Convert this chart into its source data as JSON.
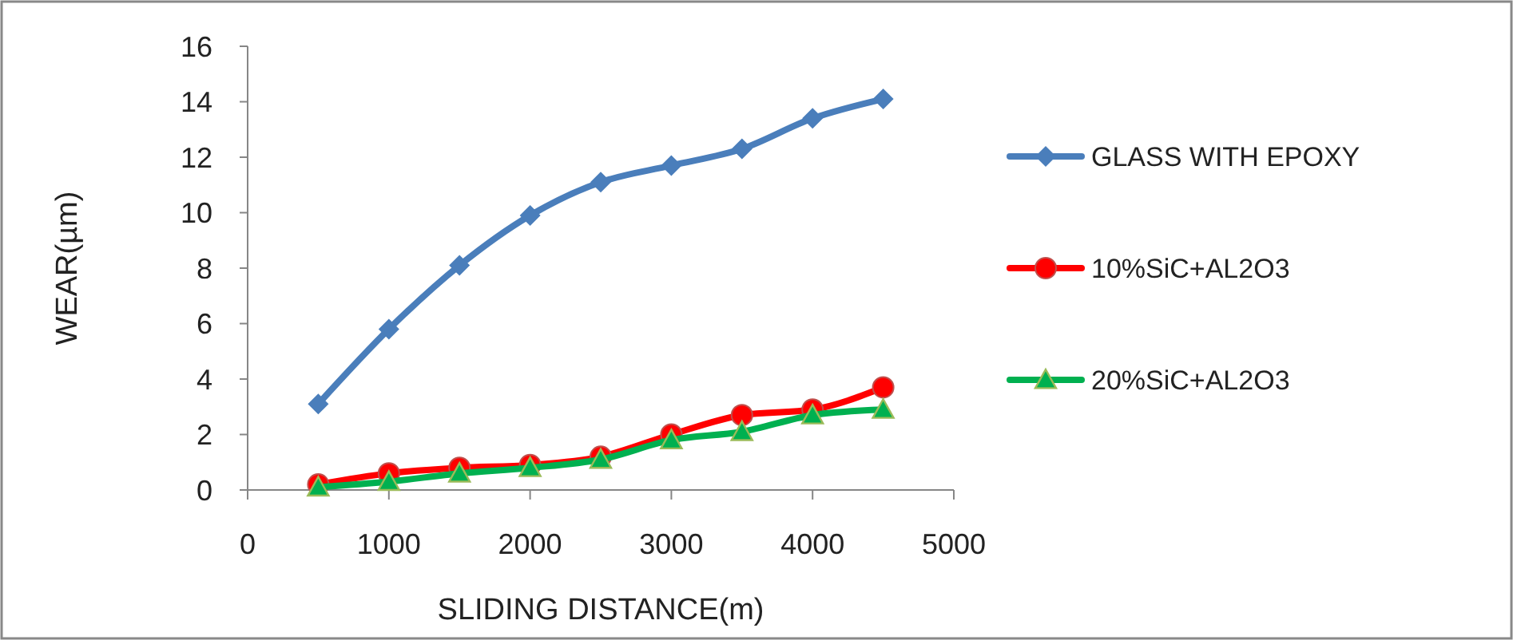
{
  "chart_data": {
    "type": "line",
    "xlabel": "SLIDING DISTANCE(m)",
    "ylabel": "WEAR(µm)",
    "x": [
      500,
      1000,
      1500,
      2000,
      2500,
      3000,
      3500,
      4000,
      4500
    ],
    "series": [
      {
        "name": "GLASS WITH EPOXY",
        "color": "#4a7ebb",
        "marker": "diamond",
        "values": [
          3.1,
          5.8,
          8.1,
          9.9,
          11.1,
          11.7,
          12.3,
          13.4,
          14.1
        ]
      },
      {
        "name": "10%SiC+AL2O3",
        "color": "#ff0000",
        "marker": "circle",
        "values": [
          0.2,
          0.6,
          0.8,
          0.9,
          1.2,
          2.0,
          2.7,
          2.9,
          3.7
        ]
      },
      {
        "name": "20%SiC+AL2O3",
        "color": "#00b050",
        "marker": "triangle",
        "values": [
          0.1,
          0.3,
          0.6,
          0.8,
          1.1,
          1.8,
          2.1,
          2.7,
          2.9
        ]
      }
    ],
    "xlim": [
      0,
      5000
    ],
    "xticks": [
      0,
      1000,
      2000,
      3000,
      4000,
      5000
    ],
    "ylim": [
      0,
      16
    ],
    "yticks": [
      0,
      2,
      4,
      6,
      8,
      10,
      12,
      14,
      16
    ],
    "grid": false,
    "legend": "right"
  }
}
